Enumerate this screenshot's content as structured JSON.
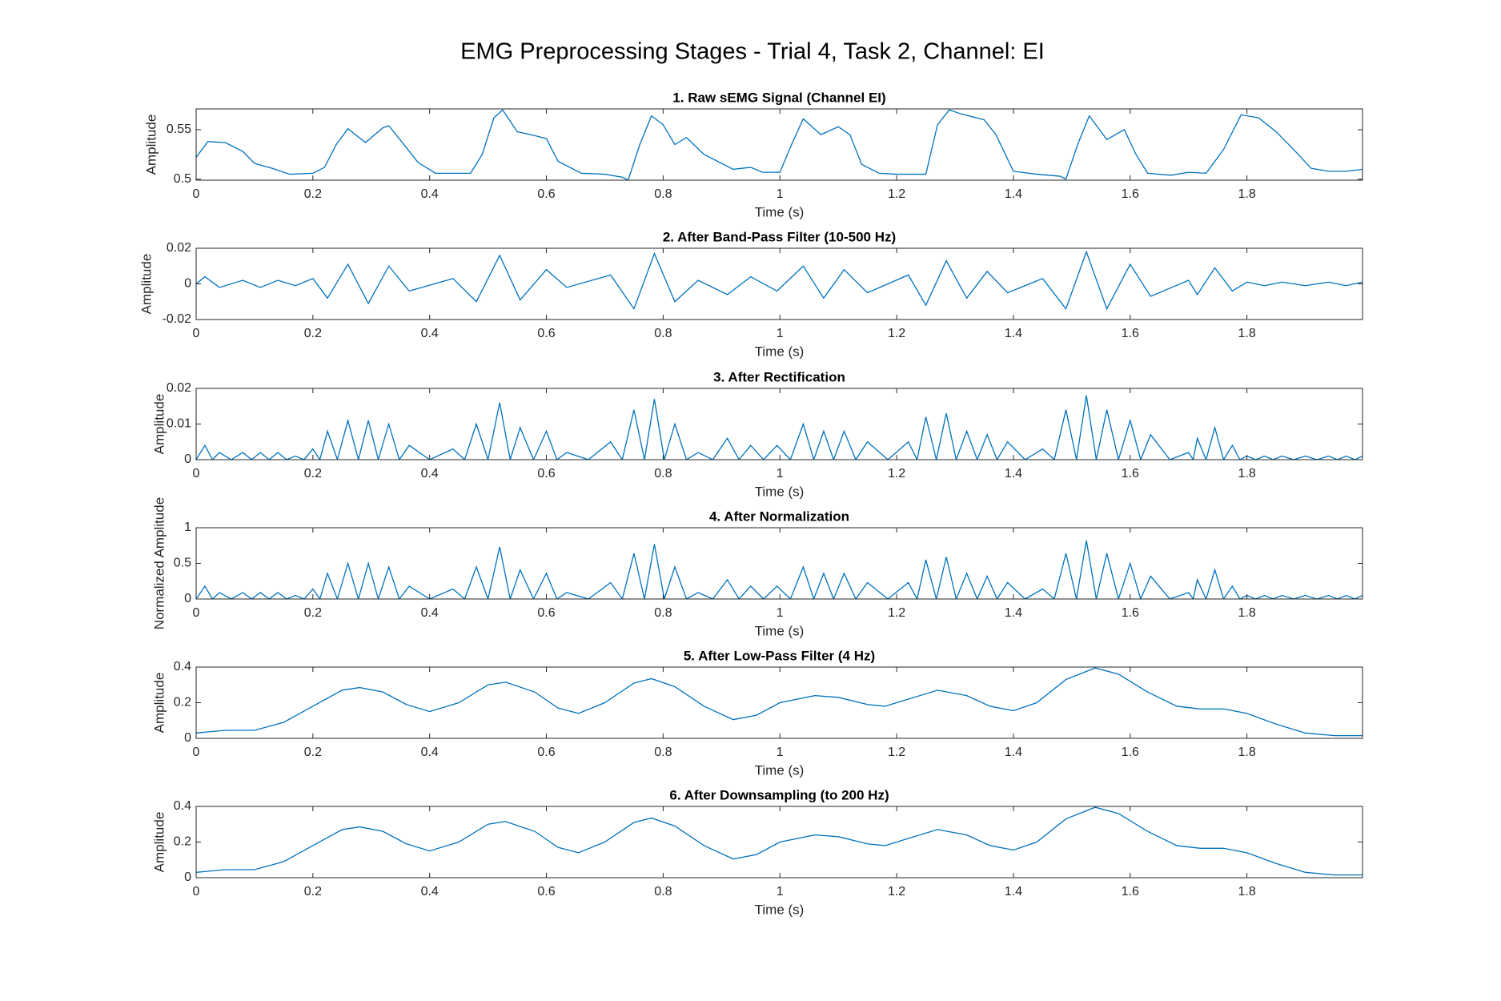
{
  "title": "EMG Preprocessing Stages - Trial 4, Task 2, Channel: EI",
  "chart_data": [
    {
      "type": "line",
      "title": "1. Raw sEMG Signal (Channel EI)",
      "xlabel": "Time (s)",
      "ylabel": "Amplitude",
      "color": "#0072bd",
      "xlim": [
        0,
        1.998
      ],
      "ylim": [
        0.499,
        0.571
      ],
      "xticks": [
        0,
        0.2,
        0.4,
        0.6,
        0.8,
        1,
        1.2,
        1.4,
        1.6,
        1.8
      ],
      "yticks": [
        0.5,
        0.55
      ],
      "x": [
        0,
        0.02,
        0.05,
        0.08,
        0.1,
        0.13,
        0.16,
        0.2,
        0.22,
        0.24,
        0.26,
        0.29,
        0.32,
        0.33,
        0.36,
        0.38,
        0.41,
        0.47,
        0.49,
        0.51,
        0.525,
        0.55,
        0.58,
        0.6,
        0.62,
        0.66,
        0.7,
        0.73,
        0.74,
        0.76,
        0.78,
        0.8,
        0.82,
        0.84,
        0.87,
        0.9,
        0.92,
        0.95,
        0.97,
        1.0,
        1.02,
        1.04,
        1.07,
        1.1,
        1.12,
        1.14,
        1.17,
        1.2,
        1.25,
        1.27,
        1.29,
        1.31,
        1.35,
        1.37,
        1.4,
        1.44,
        1.48,
        1.49,
        1.51,
        1.53,
        1.56,
        1.59,
        1.61,
        1.63,
        1.67,
        1.7,
        1.73,
        1.76,
        1.79,
        1.82,
        1.85,
        1.88,
        1.91,
        1.94,
        1.97,
        1.998
      ],
      "values": [
        0.522,
        0.538,
        0.537,
        0.528,
        0.516,
        0.511,
        0.505,
        0.506,
        0.512,
        0.535,
        0.551,
        0.537,
        0.552,
        0.554,
        0.532,
        0.517,
        0.506,
        0.506,
        0.525,
        0.562,
        0.57,
        0.548,
        0.544,
        0.541,
        0.518,
        0.506,
        0.505,
        0.502,
        0.499,
        0.535,
        0.564,
        0.555,
        0.535,
        0.542,
        0.525,
        0.516,
        0.51,
        0.512,
        0.507,
        0.507,
        0.535,
        0.561,
        0.545,
        0.553,
        0.545,
        0.515,
        0.506,
        0.505,
        0.505,
        0.555,
        0.57,
        0.566,
        0.56,
        0.545,
        0.508,
        0.505,
        0.503,
        0.5,
        0.535,
        0.564,
        0.54,
        0.55,
        0.525,
        0.506,
        0.504,
        0.507,
        0.506,
        0.53,
        0.565,
        0.562,
        0.548,
        0.53,
        0.511,
        0.508,
        0.508,
        0.51
      ]
    },
    {
      "type": "line",
      "title": "2. After Band-Pass Filter (10-500 Hz)",
      "xlabel": "Time (s)",
      "ylabel": "Amplitude",
      "color": "#0072bd",
      "xlim": [
        0,
        1.998
      ],
      "ylim": [
        -0.02,
        0.02
      ],
      "xticks": [
        0,
        0.2,
        0.4,
        0.6,
        0.8,
        1,
        1.2,
        1.4,
        1.6,
        1.8
      ],
      "yticks": [
        -0.02,
        0,
        0.02
      ],
      "x": [
        0,
        0.015,
        0.04,
        0.08,
        0.11,
        0.14,
        0.17,
        0.2,
        0.225,
        0.26,
        0.295,
        0.33,
        0.365,
        0.44,
        0.48,
        0.52,
        0.555,
        0.6,
        0.635,
        0.71,
        0.75,
        0.785,
        0.82,
        0.86,
        0.91,
        0.95,
        0.995,
        1.04,
        1.075,
        1.11,
        1.15,
        1.22,
        1.25,
        1.285,
        1.32,
        1.355,
        1.39,
        1.45,
        1.49,
        1.525,
        1.56,
        1.6,
        1.635,
        1.7,
        1.715,
        1.745,
        1.775,
        1.8,
        1.83,
        1.86,
        1.9,
        1.94,
        1.97,
        1.998
      ],
      "values": [
        0,
        0.004,
        -0.002,
        0.002,
        -0.002,
        0.002,
        -0.001,
        0.003,
        -0.008,
        0.011,
        -0.011,
        0.01,
        -0.004,
        0.003,
        -0.01,
        0.016,
        -0.009,
        0.008,
        -0.002,
        0.005,
        -0.014,
        0.017,
        -0.01,
        0.002,
        -0.006,
        0.004,
        -0.004,
        0.01,
        -0.008,
        0.008,
        -0.005,
        0.005,
        -0.012,
        0.013,
        -0.008,
        0.007,
        -0.005,
        0.003,
        -0.014,
        0.018,
        -0.014,
        0.011,
        -0.007,
        0.002,
        -0.006,
        0.009,
        -0.004,
        0.001,
        -0.001,
        0.001,
        -0.001,
        0.001,
        -0.001,
        0.001
      ]
    },
    {
      "type": "line",
      "title": "3. After Rectification",
      "xlabel": "Time (s)",
      "ylabel": "Amplitude",
      "color": "#0072bd",
      "xlim": [
        0,
        1.998
      ],
      "ylim": [
        0,
        0.02
      ],
      "xticks": [
        0,
        0.2,
        0.4,
        0.6,
        0.8,
        1,
        1.2,
        1.4,
        1.6,
        1.8
      ],
      "yticks": [
        0,
        0.01,
        0.02
      ],
      "x": [
        0,
        0.015,
        0.028,
        0.04,
        0.06,
        0.08,
        0.095,
        0.11,
        0.125,
        0.14,
        0.155,
        0.17,
        0.185,
        0.2,
        0.212,
        0.225,
        0.242,
        0.26,
        0.278,
        0.295,
        0.312,
        0.33,
        0.348,
        0.365,
        0.4,
        0.44,
        0.46,
        0.48,
        0.5,
        0.52,
        0.538,
        0.555,
        0.578,
        0.6,
        0.618,
        0.635,
        0.672,
        0.71,
        0.73,
        0.75,
        0.768,
        0.785,
        0.802,
        0.82,
        0.84,
        0.86,
        0.885,
        0.91,
        0.93,
        0.95,
        0.972,
        0.995,
        1.018,
        1.04,
        1.058,
        1.075,
        1.092,
        1.11,
        1.13,
        1.15,
        1.185,
        1.22,
        1.235,
        1.25,
        1.268,
        1.285,
        1.302,
        1.32,
        1.338,
        1.355,
        1.372,
        1.39,
        1.42,
        1.45,
        1.47,
        1.49,
        1.508,
        1.525,
        1.542,
        1.56,
        1.58,
        1.6,
        1.618,
        1.635,
        1.668,
        1.7,
        1.708,
        1.715,
        1.73,
        1.745,
        1.76,
        1.775,
        1.788,
        1.8,
        1.815,
        1.83,
        1.845,
        1.86,
        1.88,
        1.9,
        1.92,
        1.94,
        1.955,
        1.97,
        1.985,
        1.998
      ],
      "values": [
        0,
        0.004,
        0,
        0.002,
        0,
        0.002,
        0,
        0.002,
        0,
        0.002,
        0,
        0.001,
        0,
        0.003,
        0,
        0.008,
        0,
        0.011,
        0,
        0.011,
        0,
        0.01,
        0,
        0.004,
        0,
        0.003,
        0,
        0.01,
        0,
        0.016,
        0,
        0.009,
        0,
        0.008,
        0,
        0.002,
        0,
        0.005,
        0,
        0.014,
        0,
        0.017,
        0,
        0.01,
        0,
        0.002,
        0,
        0.006,
        0,
        0.004,
        0,
        0.004,
        0,
        0.01,
        0,
        0.008,
        0,
        0.008,
        0,
        0.005,
        0,
        0.005,
        0,
        0.012,
        0,
        0.013,
        0,
        0.008,
        0,
        0.007,
        0,
        0.005,
        0,
        0.003,
        0,
        0.014,
        0,
        0.018,
        0,
        0.014,
        0,
        0.011,
        0,
        0.007,
        0,
        0.002,
        0,
        0.006,
        0,
        0.009,
        0,
        0.004,
        0,
        0.001,
        0,
        0.001,
        0,
        0.001,
        0,
        0.001,
        0,
        0.001,
        0,
        0.001,
        0,
        0.001
      ]
    },
    {
      "type": "line",
      "title": "4. After Normalization",
      "xlabel": "Time (s)",
      "ylabel": "Normalized Amplitude",
      "color": "#0072bd",
      "xlim": [
        0,
        1.998
      ],
      "ylim": [
        0,
        1
      ],
      "xticks": [
        0,
        0.2,
        0.4,
        0.6,
        0.8,
        1,
        1.2,
        1.4,
        1.6,
        1.8
      ],
      "yticks": [
        0,
        0.5,
        1
      ],
      "x": [
        0,
        0.015,
        0.028,
        0.04,
        0.06,
        0.08,
        0.095,
        0.11,
        0.125,
        0.14,
        0.155,
        0.17,
        0.185,
        0.2,
        0.212,
        0.225,
        0.242,
        0.26,
        0.278,
        0.295,
        0.312,
        0.33,
        0.348,
        0.365,
        0.4,
        0.44,
        0.46,
        0.48,
        0.5,
        0.52,
        0.538,
        0.555,
        0.578,
        0.6,
        0.618,
        0.635,
        0.672,
        0.71,
        0.73,
        0.75,
        0.768,
        0.785,
        0.802,
        0.82,
        0.84,
        0.86,
        0.885,
        0.91,
        0.93,
        0.95,
        0.972,
        0.995,
        1.018,
        1.04,
        1.058,
        1.075,
        1.092,
        1.11,
        1.13,
        1.15,
        1.185,
        1.22,
        1.235,
        1.25,
        1.268,
        1.285,
        1.302,
        1.32,
        1.338,
        1.355,
        1.372,
        1.39,
        1.42,
        1.45,
        1.47,
        1.49,
        1.508,
        1.525,
        1.542,
        1.56,
        1.58,
        1.6,
        1.618,
        1.635,
        1.668,
        1.7,
        1.708,
        1.715,
        1.73,
        1.745,
        1.76,
        1.775,
        1.788,
        1.8,
        1.815,
        1.83,
        1.845,
        1.86,
        1.88,
        1.9,
        1.92,
        1.94,
        1.955,
        1.97,
        1.985,
        1.998
      ],
      "values": [
        0,
        0.18,
        0,
        0.09,
        0,
        0.09,
        0,
        0.09,
        0,
        0.09,
        0,
        0.05,
        0,
        0.14,
        0,
        0.36,
        0,
        0.5,
        0,
        0.5,
        0,
        0.45,
        0,
        0.18,
        0,
        0.14,
        0,
        0.45,
        0,
        0.73,
        0,
        0.41,
        0,
        0.36,
        0,
        0.09,
        0,
        0.23,
        0,
        0.64,
        0,
        0.77,
        0,
        0.45,
        0,
        0.09,
        0,
        0.27,
        0,
        0.18,
        0,
        0.18,
        0,
        0.45,
        0,
        0.36,
        0,
        0.36,
        0,
        0.23,
        0,
        0.23,
        0,
        0.55,
        0,
        0.59,
        0,
        0.36,
        0,
        0.32,
        0,
        0.23,
        0,
        0.14,
        0,
        0.64,
        0,
        0.82,
        0,
        0.64,
        0,
        0.5,
        0,
        0.32,
        0,
        0.09,
        0,
        0.27,
        0,
        0.41,
        0,
        0.18,
        0,
        0.05,
        0,
        0.05,
        0,
        0.05,
        0,
        0.05,
        0,
        0.05,
        0,
        0.05,
        0,
        0.05
      ]
    },
    {
      "type": "line",
      "title": "5. After Low-Pass Filter (4 Hz)",
      "xlabel": "Time (s)",
      "ylabel": "Amplitude",
      "color": "#0072bd",
      "xlim": [
        0,
        1.998
      ],
      "ylim": [
        0,
        0.4
      ],
      "xticks": [
        0,
        0.2,
        0.4,
        0.6,
        0.8,
        1,
        1.2,
        1.4,
        1.6,
        1.8
      ],
      "yticks": [
        0,
        0.2,
        0.4
      ],
      "x": [
        0,
        0.05,
        0.1,
        0.15,
        0.2,
        0.25,
        0.28,
        0.32,
        0.36,
        0.4,
        0.45,
        0.5,
        0.53,
        0.58,
        0.62,
        0.655,
        0.7,
        0.75,
        0.78,
        0.82,
        0.87,
        0.92,
        0.96,
        1.0,
        1.06,
        1.1,
        1.15,
        1.18,
        1.22,
        1.27,
        1.32,
        1.36,
        1.4,
        1.44,
        1.49,
        1.54,
        1.58,
        1.63,
        1.68,
        1.72,
        1.76,
        1.8,
        1.85,
        1.9,
        1.95,
        1.998
      ],
      "values": [
        0.03,
        0.045,
        0.045,
        0.09,
        0.18,
        0.27,
        0.285,
        0.26,
        0.19,
        0.15,
        0.2,
        0.3,
        0.315,
        0.26,
        0.17,
        0.14,
        0.2,
        0.31,
        0.335,
        0.29,
        0.18,
        0.105,
        0.13,
        0.2,
        0.24,
        0.23,
        0.19,
        0.18,
        0.22,
        0.27,
        0.24,
        0.18,
        0.155,
        0.2,
        0.33,
        0.395,
        0.36,
        0.26,
        0.18,
        0.165,
        0.165,
        0.14,
        0.08,
        0.03,
        0.015,
        0.015
      ]
    },
    {
      "type": "line",
      "title": "6. After Downsampling (to 200 Hz)",
      "xlabel": "Time (s)",
      "ylabel": "Amplitude",
      "color": "#0072bd",
      "xlim": [
        0,
        1.998
      ],
      "ylim": [
        0,
        0.4
      ],
      "xticks": [
        0,
        0.2,
        0.4,
        0.6,
        0.8,
        1,
        1.2,
        1.4,
        1.6,
        1.8
      ],
      "yticks": [
        0,
        0.2,
        0.4
      ],
      "x": [
        0,
        0.05,
        0.1,
        0.15,
        0.2,
        0.25,
        0.28,
        0.32,
        0.36,
        0.4,
        0.45,
        0.5,
        0.53,
        0.58,
        0.62,
        0.655,
        0.7,
        0.75,
        0.78,
        0.82,
        0.87,
        0.92,
        0.96,
        1.0,
        1.06,
        1.1,
        1.15,
        1.18,
        1.22,
        1.27,
        1.32,
        1.36,
        1.4,
        1.44,
        1.49,
        1.54,
        1.58,
        1.63,
        1.68,
        1.72,
        1.76,
        1.8,
        1.85,
        1.9,
        1.95,
        1.998
      ],
      "values": [
        0.03,
        0.045,
        0.045,
        0.09,
        0.18,
        0.27,
        0.285,
        0.26,
        0.19,
        0.15,
        0.2,
        0.3,
        0.315,
        0.26,
        0.17,
        0.14,
        0.2,
        0.31,
        0.335,
        0.29,
        0.18,
        0.105,
        0.13,
        0.2,
        0.24,
        0.23,
        0.19,
        0.18,
        0.22,
        0.27,
        0.24,
        0.18,
        0.155,
        0.2,
        0.33,
        0.395,
        0.36,
        0.26,
        0.18,
        0.165,
        0.165,
        0.14,
        0.08,
        0.03,
        0.015,
        0.015
      ]
    }
  ]
}
